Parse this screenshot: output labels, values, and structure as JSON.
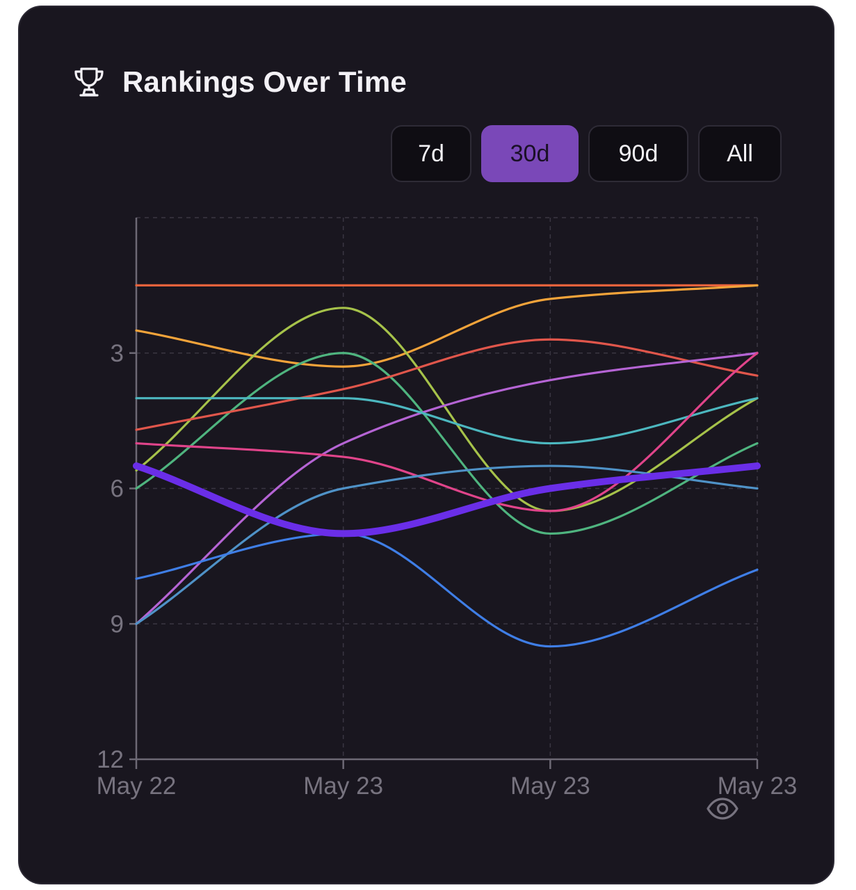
{
  "header": {
    "icon": "trophy-icon",
    "title": "Rankings Over Time"
  },
  "ranges": [
    {
      "label": "7d",
      "active": false
    },
    {
      "label": "30d",
      "active": true
    },
    {
      "label": "90d",
      "active": false
    },
    {
      "label": "All",
      "active": false
    }
  ],
  "footer": {
    "icon": "eye-icon"
  },
  "chart_data": {
    "type": "line",
    "title": "",
    "xlabel": "",
    "ylabel": "",
    "x": [
      "May 22",
      "May 23",
      "May 23",
      "May 23"
    ],
    "y_axis": {
      "inverted": true,
      "ticks": [
        3,
        6,
        9,
        12
      ],
      "range": [
        0,
        12
      ]
    },
    "grid": true,
    "series": [
      {
        "color": "#e8623c",
        "values": [
          1.5,
          1.5,
          1.5,
          1.5
        ]
      },
      {
        "color": "#f2a33a",
        "values": [
          2.5,
          3.3,
          1.8,
          1.5
        ]
      },
      {
        "color": "#a6c24a",
        "values": [
          5.6,
          2.0,
          6.5,
          4.0
        ]
      },
      {
        "color": "#4fb47f",
        "values": [
          6.0,
          3.0,
          7.0,
          5.0
        ]
      },
      {
        "color": "#e0564b",
        "values": [
          4.7,
          3.8,
          2.7,
          3.5
        ]
      },
      {
        "color": "#b564d4",
        "values": [
          9.0,
          5.0,
          3.6,
          3.0
        ]
      },
      {
        "color": "#4cb7bf",
        "values": [
          4.0,
          4.0,
          5.0,
          4.0
        ]
      },
      {
        "color": "#e0448a",
        "values": [
          5.0,
          5.3,
          6.5,
          3.0
        ]
      },
      {
        "color": "#4f92c7",
        "values": [
          9.0,
          6.0,
          5.5,
          6.0
        ]
      },
      {
        "color": "#3f7ee6",
        "values": [
          8.0,
          7.0,
          9.5,
          7.8
        ]
      },
      {
        "color": "#6a2ee8",
        "values": [
          5.5,
          7.0,
          6.0,
          5.5
        ],
        "highlight": true
      }
    ]
  }
}
